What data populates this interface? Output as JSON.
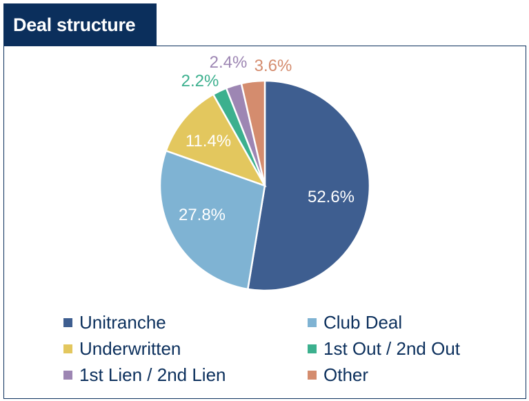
{
  "header": {
    "title": "Deal structure"
  },
  "chart_data": {
    "type": "pie",
    "categories": [
      "Unitranche",
      "Club Deal",
      "Underwritten",
      "1st Out / 2nd Out",
      "1st Lien / 2nd Lien",
      "Other"
    ],
    "values": [
      52.6,
      27.8,
      11.4,
      2.2,
      2.4,
      3.6
    ],
    "labels": [
      "52.6%",
      "27.8%",
      "11.4%",
      "2.2%",
      "2.4%",
      "3.6%"
    ],
    "colors": [
      "#3e5e90",
      "#7fb3d3",
      "#e3c75e",
      "#3cb08e",
      "#9d86b3",
      "#d48c6e"
    ],
    "label_colors": [
      "#ffffff",
      "#ffffff",
      "#ffffff",
      "#3cb08e",
      "#9d86b3",
      "#d48c6e"
    ],
    "start_angle_deg": 0,
    "direction": "clockwise",
    "legend_position": "bottom"
  }
}
